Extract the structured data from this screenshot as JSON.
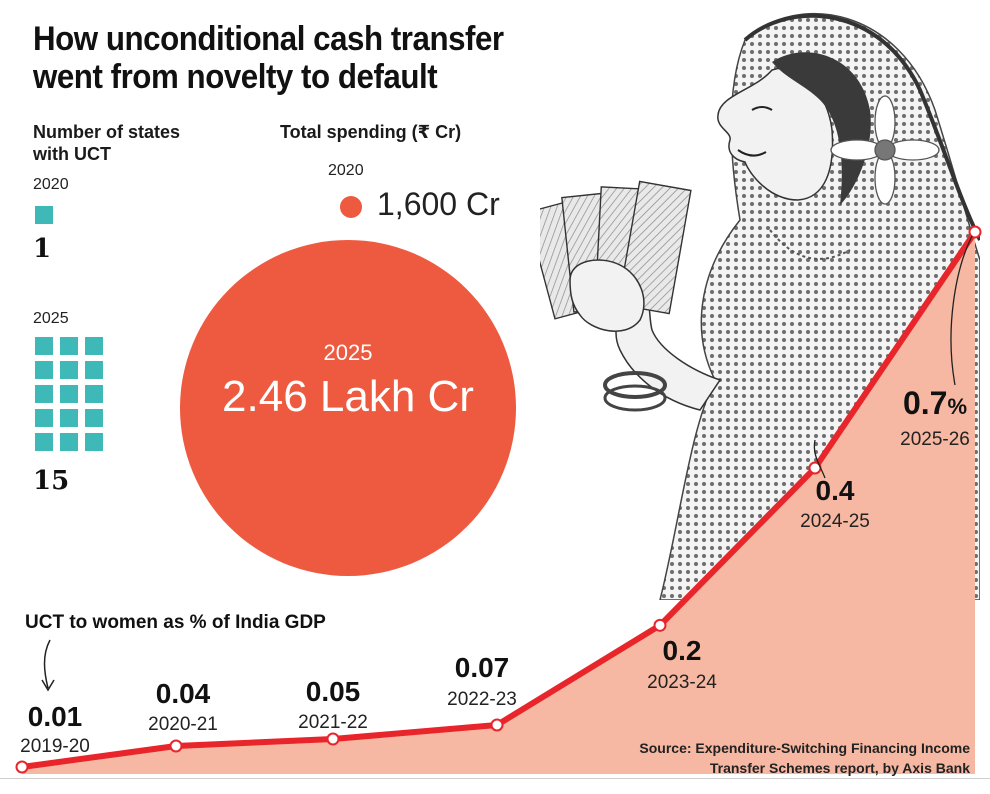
{
  "title": "How unconditional cash transfer went from novelty to default",
  "states_panel": {
    "heading": "Number of states with UCT",
    "year_2020": "2020",
    "count_2020": 1,
    "count_2020_label": "1",
    "year_2025": "2025",
    "count_2025": 15,
    "count_2025_label": "15",
    "square_color": "#3fb8b8"
  },
  "spending_panel": {
    "heading": "Total spending (₹ Cr)",
    "year_2020": "2020",
    "value_2020": "1,600 Cr",
    "year_2025": "2025",
    "value_2025": "2.46 Lakh Cr",
    "bubble_color": "#ee5a3f"
  },
  "gdp_label": "UCT to women as % of India GDP",
  "source": {
    "line1": "Source: Expenditure-Switching Financing Income",
    "line2": "Transfer Schemes report, by Axis Bank"
  },
  "chart_data": {
    "type": "area",
    "title": "UCT to women as % of India GDP",
    "categories": [
      "2019-20",
      "2020-21",
      "2021-22",
      "2022-23",
      "2023-24",
      "2024-25",
      "2025-26"
    ],
    "values": [
      0.01,
      0.04,
      0.05,
      0.07,
      0.2,
      0.4,
      0.7
    ],
    "value_labels": [
      "0.01",
      "0.04",
      "0.05",
      "0.07",
      "0.2",
      "0.4",
      "0.7"
    ],
    "last_suffix": "%",
    "ylim": [
      0,
      0.7
    ],
    "line_color": "#e8252a",
    "fill_color": "#f6b8a2"
  }
}
